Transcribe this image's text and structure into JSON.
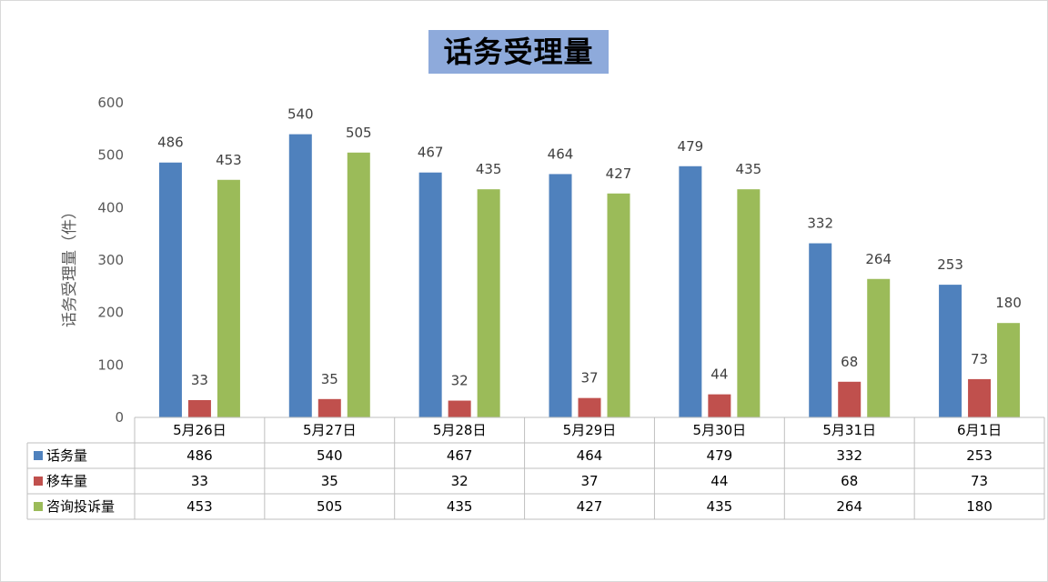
{
  "chart_data": {
    "type": "bar",
    "title": "话务受理量",
    "ylabel": "话务受理量（件）",
    "xlabel": "",
    "ylim": [
      0,
      600
    ],
    "yticks": [
      0,
      100,
      200,
      300,
      400,
      500,
      600
    ],
    "grid": false,
    "legend_placement": "data-table-left",
    "categories": [
      "5月26日",
      "5月27日",
      "5月28日",
      "5月29日",
      "5月30日",
      "5月31日",
      "6月1日"
    ],
    "series": [
      {
        "name": "话务量",
        "color": "#4f81bd",
        "values": [
          486,
          540,
          467,
          464,
          479,
          332,
          253
        ]
      },
      {
        "name": "移车量",
        "color": "#c0504d",
        "values": [
          33,
          35,
          32,
          37,
          44,
          68,
          73
        ]
      },
      {
        "name": "咨询投诉量",
        "color": "#9bbb59",
        "values": [
          453,
          505,
          435,
          427,
          435,
          264,
          180
        ]
      }
    ]
  }
}
